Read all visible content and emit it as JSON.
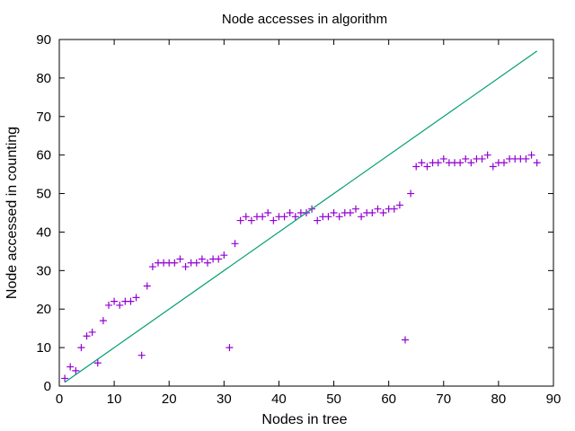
{
  "chart_data": {
    "type": "scatter",
    "title": "Node accesses in algorithm",
    "xlabel": "Nodes in tree",
    "ylabel": "Node accessed in counting",
    "xlim": [
      0,
      90
    ],
    "ylim": [
      0,
      90
    ],
    "xticks": [
      0,
      10,
      20,
      30,
      40,
      50,
      60,
      70,
      80,
      90
    ],
    "yticks": [
      0,
      10,
      20,
      30,
      40,
      50,
      60,
      70,
      80,
      90
    ],
    "grid": false,
    "legend": "none",
    "colors": {
      "points": "#9400d3",
      "line": "#009e73"
    },
    "series": [
      {
        "kind": "points",
        "marker": "plus",
        "x": [
          1,
          2,
          3,
          4,
          5,
          6,
          7,
          8,
          9,
          10,
          11,
          12,
          13,
          14,
          15,
          16,
          17,
          18,
          19,
          20,
          21,
          22,
          23,
          24,
          25,
          26,
          27,
          28,
          29,
          30,
          31,
          32,
          33,
          34,
          35,
          36,
          37,
          38,
          39,
          40,
          41,
          42,
          43,
          44,
          45,
          46,
          47,
          48,
          49,
          50,
          51,
          52,
          53,
          54,
          55,
          56,
          57,
          58,
          59,
          60,
          61,
          62,
          63,
          64,
          65,
          66,
          67,
          68,
          69,
          70,
          71,
          72,
          73,
          74,
          75,
          76,
          77,
          78,
          79,
          80,
          81,
          82,
          83,
          84,
          85,
          86,
          87
        ],
        "y": [
          2,
          5,
          4,
          10,
          13,
          14,
          6,
          17,
          21,
          22,
          21,
          22,
          22,
          23,
          8,
          26,
          31,
          32,
          32,
          32,
          32,
          33,
          31,
          32,
          32,
          33,
          32,
          33,
          33,
          34,
          10,
          37,
          43,
          44,
          43,
          44,
          44,
          45,
          43,
          44,
          44,
          45,
          44,
          45,
          45,
          46,
          43,
          44,
          44,
          45,
          44,
          45,
          45,
          46,
          44,
          45,
          45,
          46,
          45,
          46,
          46,
          47,
          12,
          50,
          57,
          58,
          57,
          58,
          58,
          59,
          58,
          58,
          58,
          59,
          58,
          59,
          59,
          60,
          57,
          58,
          58,
          59,
          59,
          59,
          59,
          60,
          58
        ]
      },
      {
        "kind": "line",
        "x": [
          1,
          87
        ],
        "y": [
          1,
          87
        ]
      }
    ]
  }
}
